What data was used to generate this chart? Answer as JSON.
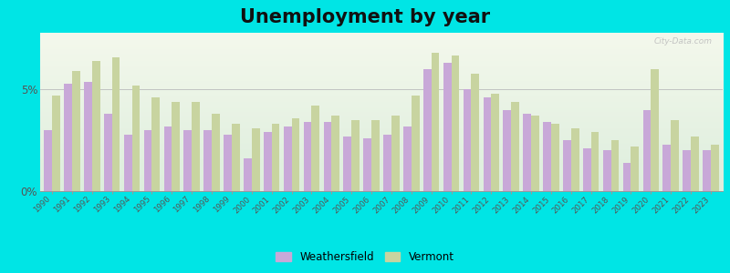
{
  "title": "Unemployment by year",
  "years": [
    1990,
    1991,
    1992,
    1993,
    1994,
    1995,
    1996,
    1997,
    1998,
    1999,
    2000,
    2001,
    2002,
    2003,
    2004,
    2005,
    2006,
    2007,
    2008,
    2009,
    2010,
    2011,
    2012,
    2013,
    2014,
    2015,
    2016,
    2017,
    2018,
    2019,
    2020,
    2021,
    2022,
    2023
  ],
  "weathersfield": [
    3.0,
    5.3,
    5.4,
    3.8,
    2.8,
    3.0,
    3.2,
    3.0,
    3.0,
    2.8,
    1.6,
    2.9,
    3.2,
    3.4,
    3.4,
    2.7,
    2.6,
    2.8,
    3.2,
    6.0,
    6.3,
    5.0,
    4.6,
    4.0,
    3.8,
    3.4,
    2.5,
    2.1,
    2.0,
    1.4,
    4.0,
    2.3,
    2.0,
    2.0
  ],
  "vermont": [
    4.7,
    5.9,
    6.4,
    6.6,
    5.2,
    4.6,
    4.4,
    4.4,
    3.8,
    3.3,
    3.1,
    3.3,
    3.6,
    4.2,
    3.7,
    3.5,
    3.5,
    3.7,
    4.7,
    6.8,
    6.7,
    5.8,
    4.8,
    4.4,
    3.7,
    3.3,
    3.1,
    2.9,
    2.5,
    2.2,
    6.0,
    3.5,
    2.7,
    2.3
  ],
  "weathersfield_color": "#c8a8d8",
  "vermont_color": "#c8d4a0",
  "outer_background": "#00e5e5",
  "ylim_max": 7.8,
  "ytick_positions": [
    0,
    5
  ],
  "ytick_labels": [
    "0%",
    "5%"
  ],
  "title_fontsize": 15,
  "legend_weathersfield": "Weathersfield",
  "legend_vermont": "Vermont"
}
